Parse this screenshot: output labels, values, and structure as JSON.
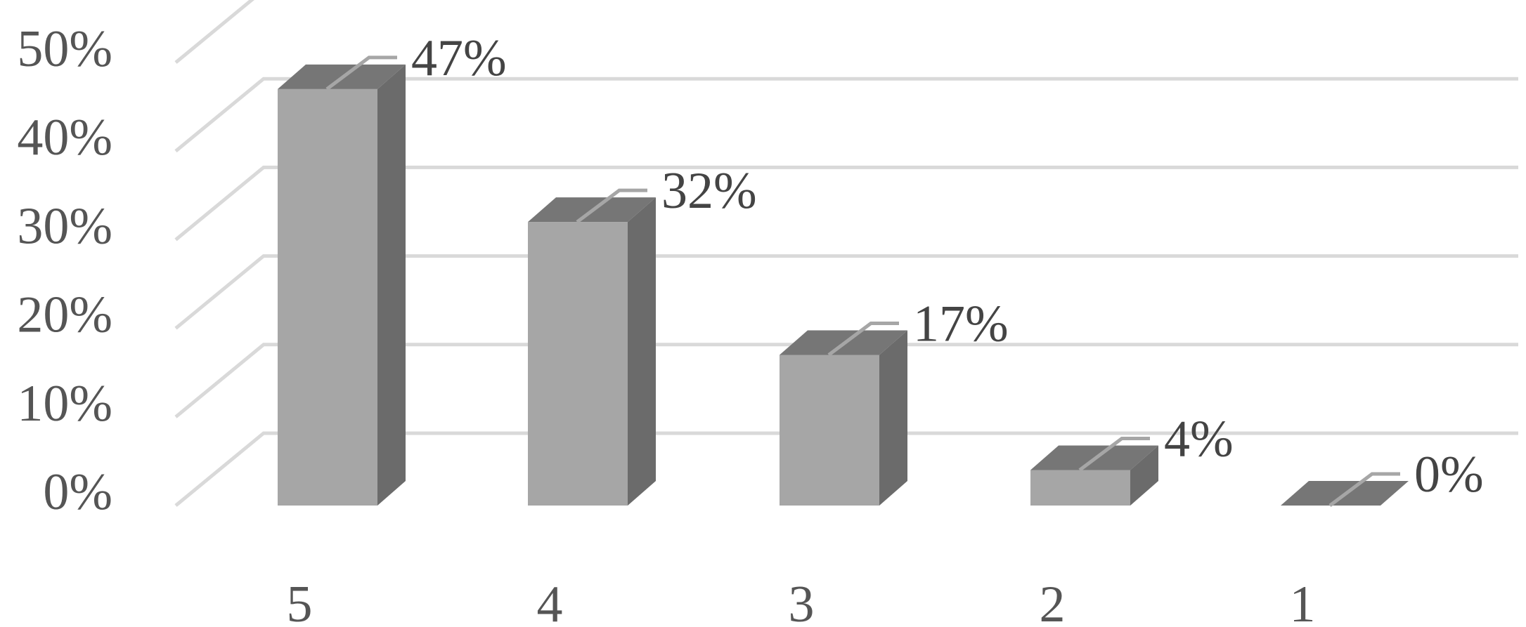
{
  "chart_data": {
    "type": "bar",
    "style": "3d-column",
    "categories": [
      "5",
      "4",
      "3",
      "2",
      "1"
    ],
    "values": [
      47,
      32,
      17,
      4,
      0
    ],
    "data_labels": [
      "47%",
      "32%",
      "17%",
      "4%",
      "0%"
    ],
    "yticks": [
      "0%",
      "10%",
      "20%",
      "30%",
      "40%",
      "50%"
    ],
    "ylim": [
      0,
      50
    ],
    "grid": true,
    "legend": "none",
    "colors": {
      "bar_front": "#a6a6a6",
      "bar_side": "#6b6b6b",
      "bar_top": "#767676",
      "grid": "#d9d9d9",
      "leader": "#a6a6a6"
    }
  }
}
